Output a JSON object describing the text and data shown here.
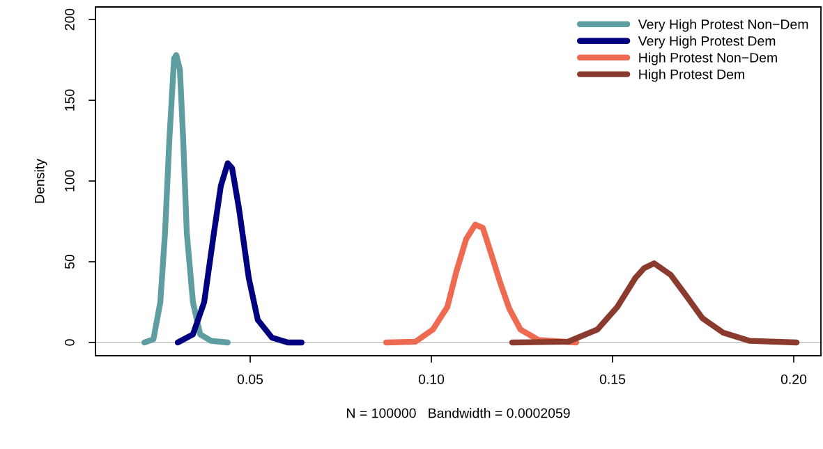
{
  "chart_data": {
    "type": "line",
    "xlabel": "N = 100000   Bandwidth = 0.0002059",
    "ylabel": "Density",
    "xlim": [
      0.0073,
      0.2075
    ],
    "ylim": [
      -8.2,
      207.8
    ],
    "xticks": [
      {
        "value": 0.05,
        "label": "0.05"
      },
      {
        "value": 0.1,
        "label": "0.10"
      },
      {
        "value": 0.15,
        "label": "0.15"
      },
      {
        "value": 0.2,
        "label": "0.20"
      }
    ],
    "yticks": [
      0,
      50,
      100,
      150,
      200
    ],
    "grid": false,
    "legend": "top right",
    "marker": "none",
    "line_style": "solid",
    "ref_lines": [
      {
        "axis": "y",
        "value": 0,
        "color": "#bebebe"
      }
    ],
    "series": [
      {
        "name": "Very High Protest Non−Dem",
        "color": "#5f9ea0",
        "x": [
          0.0208,
          0.0233,
          0.0252,
          0.0265,
          0.0277,
          0.029,
          0.0296,
          0.0306,
          0.0315,
          0.0325,
          0.0342,
          0.0362,
          0.0392,
          0.0438
        ],
        "values": [
          0,
          2,
          25,
          68,
          126,
          176,
          178,
          169,
          126,
          68,
          25,
          5,
          1,
          0
        ]
      },
      {
        "name": "Very High Protest Dem",
        "color": "#000080",
        "x": [
          0.03,
          0.0342,
          0.0373,
          0.04,
          0.0419,
          0.0438,
          0.045,
          0.0469,
          0.0496,
          0.0521,
          0.056,
          0.0604,
          0.0642
        ],
        "values": [
          0,
          5,
          25,
          68,
          97,
          111,
          108,
          83,
          40,
          14,
          3,
          0,
          0
        ]
      },
      {
        "name": "High Protest Non−Dem",
        "color": "#ee6a50",
        "x": [
          0.0875,
          0.0956,
          0.1004,
          0.1044,
          0.1069,
          0.1096,
          0.1121,
          0.1142,
          0.1165,
          0.119,
          0.1215,
          0.1246,
          0.1296,
          0.14
        ],
        "values": [
          0,
          0.5,
          8,
          22,
          44,
          64,
          73,
          71,
          55,
          37,
          21,
          8,
          1.5,
          0
        ]
      },
      {
        "name": "High Protest Dem",
        "color": "#8b3a2e",
        "x": [
          0.1223,
          0.1377,
          0.1458,
          0.1513,
          0.1563,
          0.1587,
          0.1615,
          0.166,
          0.17,
          0.1748,
          0.1806,
          0.1879,
          0.2008
        ],
        "values": [
          0,
          0.5,
          8,
          22,
          40,
          46,
          49,
          42,
          30,
          15,
          6,
          1,
          0
        ]
      }
    ]
  }
}
